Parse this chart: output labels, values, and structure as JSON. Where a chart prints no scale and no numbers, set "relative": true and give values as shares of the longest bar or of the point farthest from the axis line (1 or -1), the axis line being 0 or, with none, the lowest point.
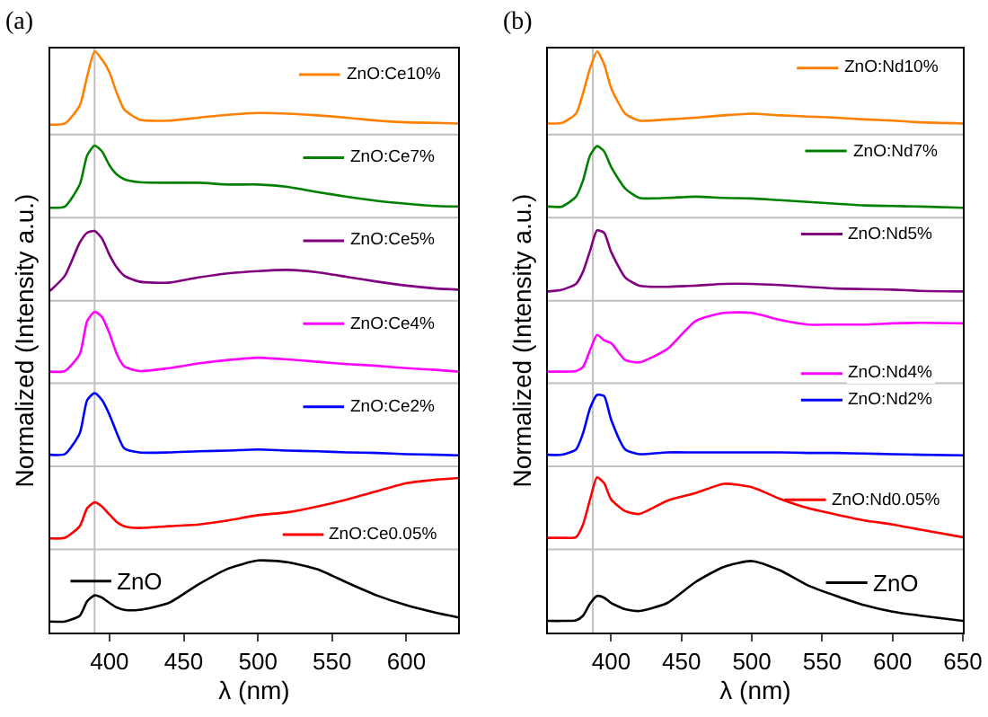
{
  "chart_data": [
    {
      "type": "line",
      "title": "(a)",
      "xlabel": "λ (nm)",
      "ylabel": "Normalized (Intensity a.u.)",
      "relative": true,
      "x": [
        360,
        370,
        380,
        385,
        390,
        395,
        400,
        405,
        410,
        420,
        440,
        460,
        480,
        500,
        520,
        540,
        560,
        580,
        600,
        620,
        635
      ],
      "xlim": [
        360,
        635
      ],
      "xticks": [
        400,
        450,
        500,
        550,
        600
      ],
      "marker": "none",
      "line_style": "solid",
      "grid": false,
      "legend": "right",
      "ref_lines": [
        {
          "axis": "x",
          "value": 390,
          "color": "#c0c0c0"
        },
        {
          "axis": "y",
          "value": 0.143,
          "color": "#c0c0c0"
        },
        {
          "axis": "y",
          "value": 0.286,
          "color": "#c0c0c0"
        },
        {
          "axis": "y",
          "value": 0.429,
          "color": "#c0c0c0"
        },
        {
          "axis": "y",
          "value": 0.571,
          "color": "#c0c0c0"
        },
        {
          "axis": "y",
          "value": 0.714,
          "color": "#c0c0c0"
        },
        {
          "axis": "y",
          "value": 0.857,
          "color": "#c0c0c0"
        }
      ],
      "series": [
        {
          "name": "ZnO:Ce10%",
          "color": "#ff8000",
          "values": [
            0.874,
            0.876,
            0.907,
            0.957,
            1.0,
            0.986,
            0.964,
            0.928,
            0.9,
            0.883,
            0.881,
            0.886,
            0.891,
            0.894,
            0.893,
            0.89,
            0.886,
            0.881,
            0.878,
            0.877,
            0.876
          ]
        },
        {
          "name": "ZnO:Ce7%",
          "color": "#008000",
          "values": [
            0.731,
            0.733,
            0.771,
            0.821,
            0.838,
            0.828,
            0.804,
            0.788,
            0.78,
            0.775,
            0.774,
            0.774,
            0.771,
            0.771,
            0.767,
            0.758,
            0.75,
            0.743,
            0.738,
            0.734,
            0.733
          ]
        },
        {
          "name": "ZnO:Ce5%",
          "color": "#800080",
          "values": [
            0.588,
            0.614,
            0.671,
            0.688,
            0.691,
            0.678,
            0.65,
            0.628,
            0.614,
            0.604,
            0.602,
            0.611,
            0.618,
            0.622,
            0.624,
            0.62,
            0.612,
            0.604,
            0.597,
            0.592,
            0.59
          ]
        },
        {
          "name": "ZnO:Ce4%",
          "color": "#ff00ff",
          "values": [
            0.449,
            0.45,
            0.479,
            0.536,
            0.552,
            0.543,
            0.515,
            0.479,
            0.458,
            0.45,
            0.455,
            0.463,
            0.469,
            0.473,
            0.47,
            0.466,
            0.462,
            0.459,
            0.455,
            0.452,
            0.449
          ]
        },
        {
          "name": "ZnO:Ce2%",
          "color": "#0000ff",
          "values": [
            0.306,
            0.307,
            0.343,
            0.4,
            0.412,
            0.4,
            0.375,
            0.343,
            0.317,
            0.31,
            0.31,
            0.312,
            0.313,
            0.315,
            0.313,
            0.312,
            0.31,
            0.309,
            0.307,
            0.306,
            0.305
          ]
        },
        {
          "name": "ZnO:Ce0.05%",
          "color": "#ff0000",
          "values": [
            0.162,
            0.163,
            0.183,
            0.214,
            0.224,
            0.217,
            0.203,
            0.19,
            0.183,
            0.18,
            0.183,
            0.186,
            0.193,
            0.202,
            0.207,
            0.217,
            0.229,
            0.243,
            0.257,
            0.263,
            0.266
          ]
        },
        {
          "name": "ZnO",
          "color": "#000000",
          "values": [
            0.019,
            0.019,
            0.029,
            0.054,
            0.064,
            0.06,
            0.051,
            0.043,
            0.039,
            0.039,
            0.051,
            0.083,
            0.11,
            0.124,
            0.121,
            0.109,
            0.086,
            0.064,
            0.047,
            0.034,
            0.026
          ]
        }
      ]
    },
    {
      "type": "line",
      "title": "(b)",
      "xlabel": "λ (nm)",
      "ylabel": "Normalized (Intensity a.u.)",
      "relative": true,
      "x": [
        355,
        365,
        375,
        380,
        385,
        390,
        395,
        400,
        410,
        420,
        440,
        460,
        480,
        500,
        520,
        540,
        560,
        580,
        600,
        620,
        650
      ],
      "xlim": [
        355,
        650
      ],
      "xticks": [
        400,
        450,
        500,
        550,
        600,
        650
      ],
      "marker": "none",
      "line_style": "solid",
      "grid": false,
      "legend": "right",
      "ref_lines": [
        {
          "axis": "x",
          "value": 387,
          "color": "#c0c0c0"
        },
        {
          "axis": "y",
          "value": 0.143,
          "color": "#c0c0c0"
        },
        {
          "axis": "y",
          "value": 0.286,
          "color": "#c0c0c0"
        },
        {
          "axis": "y",
          "value": 0.429,
          "color": "#c0c0c0"
        },
        {
          "axis": "y",
          "value": 0.571,
          "color": "#c0c0c0"
        },
        {
          "axis": "y",
          "value": 0.714,
          "color": "#c0c0c0"
        },
        {
          "axis": "y",
          "value": 0.857,
          "color": "#c0c0c0"
        }
      ],
      "series": [
        {
          "name": "ZnO:Nd10%",
          "color": "#ff8000",
          "values": [
            0.876,
            0.877,
            0.893,
            0.928,
            0.971,
            1.0,
            0.978,
            0.937,
            0.893,
            0.881,
            0.883,
            0.886,
            0.89,
            0.893,
            0.89,
            0.888,
            0.886,
            0.883,
            0.881,
            0.878,
            0.876
          ]
        },
        {
          "name": "ZnO:Nd7%",
          "color": "#008000",
          "values": [
            0.733,
            0.733,
            0.75,
            0.778,
            0.821,
            0.837,
            0.828,
            0.801,
            0.764,
            0.748,
            0.748,
            0.75,
            0.748,
            0.747,
            0.744,
            0.741,
            0.738,
            0.735,
            0.734,
            0.733,
            0.731
          ]
        },
        {
          "name": "ZnO:Nd5%",
          "color": "#800080",
          "values": [
            0.587,
            0.59,
            0.6,
            0.621,
            0.657,
            0.692,
            0.688,
            0.655,
            0.611,
            0.597,
            0.595,
            0.597,
            0.6,
            0.6,
            0.598,
            0.595,
            0.592,
            0.591,
            0.59,
            0.588,
            0.587
          ]
        },
        {
          "name": "ZnO:Nd4%",
          "color": "#ff00ff",
          "values": [
            0.449,
            0.449,
            0.45,
            0.457,
            0.486,
            0.512,
            0.503,
            0.498,
            0.469,
            0.465,
            0.488,
            0.536,
            0.55,
            0.55,
            0.538,
            0.53,
            0.53,
            0.53,
            0.532,
            0.533,
            0.532
          ]
        },
        {
          "name": "ZnO:Nd2%",
          "color": "#0000ff",
          "values": [
            0.306,
            0.306,
            0.315,
            0.343,
            0.386,
            0.409,
            0.407,
            0.366,
            0.315,
            0.307,
            0.31,
            0.31,
            0.31,
            0.31,
            0.31,
            0.309,
            0.309,
            0.308,
            0.307,
            0.306,
            0.305
          ]
        },
        {
          "name": "ZnO:Nd0.05%",
          "color": "#ff0000",
          "values": [
            0.163,
            0.163,
            0.164,
            0.186,
            0.229,
            0.267,
            0.257,
            0.229,
            0.209,
            0.204,
            0.227,
            0.24,
            0.256,
            0.25,
            0.23,
            0.214,
            0.203,
            0.193,
            0.186,
            0.177,
            0.164
          ]
        },
        {
          "name": "ZnO",
          "color": "#000000",
          "values": [
            0.02,
            0.02,
            0.021,
            0.029,
            0.05,
            0.063,
            0.06,
            0.051,
            0.04,
            0.037,
            0.051,
            0.087,
            0.113,
            0.123,
            0.107,
            0.081,
            0.063,
            0.047,
            0.036,
            0.029,
            0.02
          ]
        }
      ]
    }
  ]
}
